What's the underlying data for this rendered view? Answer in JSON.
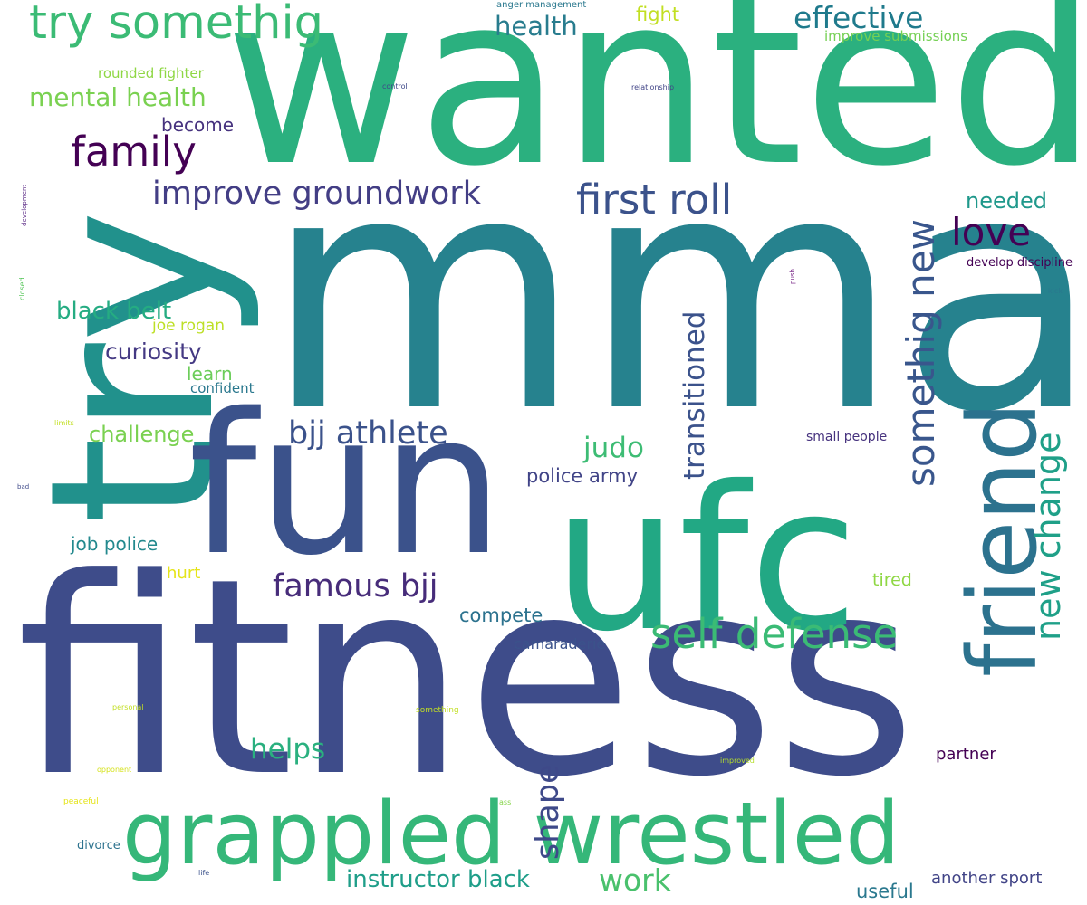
{
  "words": [
    {
      "text": "wanted",
      "color": "#2bb07f"
    },
    {
      "text": "mma",
      "color": "#26828e"
    },
    {
      "text": "fitness",
      "color": "#3e4c8a"
    },
    {
      "text": "try",
      "color": "#21918c"
    },
    {
      "text": "fun",
      "color": "#3b528b"
    },
    {
      "text": "ufc",
      "color": "#22a884"
    },
    {
      "text": "grappled wrestled",
      "color": "#35b779"
    },
    {
      "text": "friend",
      "color": "#2c728e"
    },
    {
      "text": "try somethig",
      "color": "#3bbb75"
    },
    {
      "text": "family",
      "color": "#440154"
    },
    {
      "text": "first roll",
      "color": "#3b528b"
    },
    {
      "text": "self defense",
      "color": "#3bbb75"
    },
    {
      "text": "improve groundwork",
      "color": "#433e85"
    },
    {
      "text": "effective",
      "color": "#1f7a8c"
    },
    {
      "text": "love",
      "color": "#440154"
    },
    {
      "text": "somethig new",
      "color": "#39568c"
    },
    {
      "text": "new change",
      "color": "#1fa088"
    },
    {
      "text": "transitioned",
      "color": "#3b528b"
    },
    {
      "text": "bjj athlete",
      "color": "#3b528b"
    },
    {
      "text": "famous bjj",
      "color": "#472c7a"
    },
    {
      "text": "health",
      "color": "#287c8e"
    },
    {
      "text": "mental health",
      "color": "#7ad151"
    },
    {
      "text": "judo",
      "color": "#3dbc74"
    },
    {
      "text": "helps",
      "color": "#2ab07f"
    },
    {
      "text": "shape",
      "color": "#3e4989"
    },
    {
      "text": "work",
      "color": "#4ac16d"
    },
    {
      "text": "instructor black",
      "color": "#1f9e89"
    },
    {
      "text": "black belt",
      "color": "#25ac82"
    },
    {
      "text": "curiosity",
      "color": "#443983"
    },
    {
      "text": "challenge",
      "color": "#7ad151"
    },
    {
      "text": "needed",
      "color": "#1f988b"
    },
    {
      "text": "fight",
      "color": "#c2df23"
    },
    {
      "text": "become",
      "color": "#46327e"
    },
    {
      "text": "learn",
      "color": "#6ccd5a"
    },
    {
      "text": "joe rogan",
      "color": "#bddf26"
    },
    {
      "text": "confident",
      "color": "#2a788e"
    },
    {
      "text": "rounded fighter",
      "color": "#8fd744"
    },
    {
      "text": "improve submissions",
      "color": "#75d054"
    },
    {
      "text": "police army",
      "color": "#414487"
    },
    {
      "text": "compete",
      "color": "#2c728e"
    },
    {
      "text": "camaraderie",
      "color": "#3b528b"
    },
    {
      "text": "job police",
      "color": "#23898e"
    },
    {
      "text": "hurt",
      "color": "#e5e419"
    },
    {
      "text": "tired",
      "color": "#8fd744"
    },
    {
      "text": "partner",
      "color": "#440154"
    },
    {
      "text": "another sport",
      "color": "#414487"
    },
    {
      "text": "useful",
      "color": "#2a788e"
    },
    {
      "text": "divorce",
      "color": "#2c728e"
    },
    {
      "text": "small people",
      "color": "#46327e"
    },
    {
      "text": "develop discipline",
      "color": "#440154"
    },
    {
      "text": "anger management",
      "color": "#2a788e"
    },
    {
      "text": "control",
      "color": "#3e4989"
    },
    {
      "text": "relationship",
      "color": "#414487"
    },
    {
      "text": "kick",
      "color": "#2a788e"
    },
    {
      "text": "push",
      "color": "#6a0f7a"
    },
    {
      "text": "development",
      "color": "#5b2a86"
    },
    {
      "text": "closed",
      "color": "#5ec962"
    },
    {
      "text": "limits",
      "color": "#c2df23"
    },
    {
      "text": "bad",
      "color": "#3e4989"
    },
    {
      "text": "personal",
      "color": "#c2df23"
    },
    {
      "text": "something",
      "color": "#c2df23"
    },
    {
      "text": "opponent",
      "color": "#d5e21a"
    },
    {
      "text": "improved",
      "color": "#b5de2b"
    },
    {
      "text": "peaceful",
      "color": "#e5e419"
    },
    {
      "text": "ass",
      "color": "#86d549"
    },
    {
      "text": "life",
      "color": "#3b528b"
    }
  ]
}
